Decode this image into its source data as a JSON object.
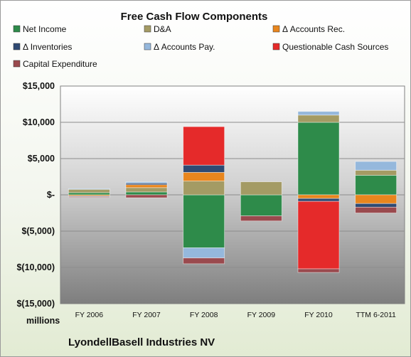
{
  "chart_data": {
    "type": "bar",
    "stacked": true,
    "title": "Free Cash Flow Components",
    "categories": [
      "FY 2006",
      "FY 2007",
      "FY 2008",
      "FY 2009",
      "FY 2010",
      "TTM 6-2011"
    ],
    "ylim": [
      -15000,
      15000
    ],
    "yticks": [
      15000,
      10000,
      5000,
      0,
      -5000,
      -10000,
      -15000
    ],
    "ytick_labels": [
      "$15,000",
      "$10,000",
      "$5,000",
      "$-",
      "$(5,000)",
      "$(10,000)",
      "$(15,000)"
    ],
    "units_label": "millions",
    "company": "LyondellBasell Industries NV",
    "legend_placement": "top",
    "grid": true,
    "series": [
      {
        "name": "Net Income",
        "color": "#2e8b4a",
        "values": [
          300,
          400,
          -7300,
          -2900,
          10000,
          2700
        ]
      },
      {
        "name": "D&A",
        "color": "#a49b64",
        "values": [
          500,
          600,
          1900,
          1800,
          1000,
          700
        ]
      },
      {
        "name": "Δ Accounts Rec.",
        "color": "#e8861e",
        "values": [
          -150,
          400,
          1200,
          0,
          -500,
          -1200
        ]
      },
      {
        "name": "Δ Inventories",
        "color": "#2f4a73",
        "values": [
          -100,
          200,
          1000,
          0,
          -400,
          -500
        ]
      },
      {
        "name": "Δ Accounts Pay.",
        "color": "#95b8dc",
        "values": [
          50,
          200,
          -1400,
          0,
          500,
          1200
        ]
      },
      {
        "name": "Questionable Cash Sources",
        "color": "#e52a2a",
        "values": [
          0,
          0,
          5300,
          0,
          -9300,
          0
        ]
      },
      {
        "name": "Capital Expenditure",
        "color": "#9a4a4e",
        "values": [
          -100,
          -400,
          -800,
          -700,
          -500,
          -800
        ]
      }
    ]
  }
}
